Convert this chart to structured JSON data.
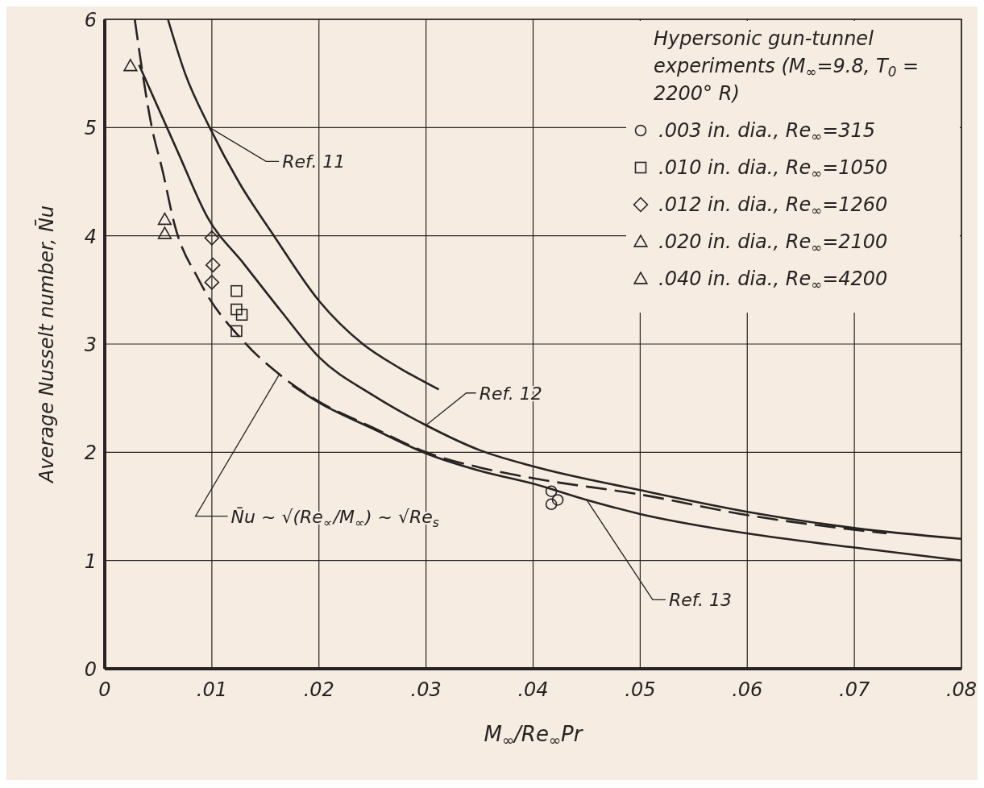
{
  "chart_data": {
    "type": "line",
    "xlabel": "M$_{∞}$/Re$_{∞}$Pr",
    "ylabel": "Average Nusselt number, N̄u",
    "legend_title": "Hypersonic gun-tunnel experiments (M$_{∞}$=9.8, T$_{0}$ = 2200° R)",
    "xlim": [
      0,
      0.08
    ],
    "xticks": [
      0,
      {
        "value": 0.01,
        "label": ".01"
      },
      {
        "value": 0.02,
        "label": ".02"
      },
      {
        "value": 0.03,
        "label": ".03"
      },
      {
        "value": 0.04,
        "label": ".04"
      },
      {
        "value": 0.05,
        "label": ".05"
      },
      {
        "value": 0.06,
        "label": ".06"
      },
      {
        "value": 0.07,
        "label": ".07"
      },
      {
        "value": 0.08,
        "label": ".08"
      }
    ],
    "ylim": [
      0,
      6
    ],
    "yticks": [
      0,
      1,
      2,
      3,
      4,
      5,
      6
    ],
    "grid": true,
    "legend": "top right",
    "series": [
      {
        "name": "Ref. 11",
        "line_style": "solid",
        "marker": "none",
        "color": "#262322",
        "x": [
          0.0059,
          0.0075,
          0.0098,
          0.0125,
          0.0158,
          0.02,
          0.0241,
          0.0275,
          0.0312
        ],
        "values": [
          6.0,
          5.5,
          5.0,
          4.5,
          4.0,
          3.4,
          3.0,
          2.78,
          2.58
        ]
      },
      {
        "name": "Ref. 12",
        "line_style": "solid",
        "marker": "none",
        "color": "#262322",
        "x": [
          0.0032,
          0.0068,
          0.0096,
          0.013,
          0.0165,
          0.02,
          0.025,
          0.03,
          0.035,
          0.04,
          0.05,
          0.06,
          0.07,
          0.08
        ],
        "values": [
          5.58,
          4.78,
          4.17,
          3.74,
          3.3,
          2.88,
          2.53,
          2.25,
          2.02,
          1.87,
          1.65,
          1.45,
          1.3,
          1.2
        ]
      },
      {
        "name": "Ref. 13",
        "line_style": "solid",
        "marker": "none",
        "color": "#262322",
        "x": [
          0.0175,
          0.02,
          0.025,
          0.03,
          0.035,
          0.04,
          0.045,
          0.05,
          0.06,
          0.07,
          0.08
        ],
        "values": [
          2.62,
          2.46,
          2.22,
          1.99,
          1.83,
          1.71,
          1.56,
          1.43,
          1.25,
          1.12,
          1.0
        ]
      },
      {
        "name": "N̄u ~ √(Re$_{∞}$/M$_{∞}$) ~ √Re$_{s}$",
        "line_style": "dashed",
        "marker": "none",
        "color": "#262322",
        "x": [
          0.0028,
          0.0044,
          0.0054,
          0.0065,
          0.0088,
          0.0131,
          0.0163,
          0.0198,
          0.025,
          0.03,
          0.035,
          0.04,
          0.05,
          0.06,
          0.073
        ],
        "values": [
          6.0,
          5.0,
          4.6,
          4.11,
          3.59,
          3.01,
          2.72,
          2.48,
          2.23,
          2.0,
          1.86,
          1.76,
          1.61,
          1.42,
          1.25
        ]
      },
      {
        "name": ".003 in. dia., Re$_{∞}$=315",
        "type": "scatter",
        "marker": "circle",
        "color": "#262322",
        "x": [
          0.0417,
          0.0423,
          0.0417
        ],
        "values": [
          1.64,
          1.56,
          1.52
        ]
      },
      {
        "name": ".010 in. dia., Re$_{∞}$=1050",
        "type": "scatter",
        "marker": "square",
        "color": "#262322",
        "x": [
          0.0123,
          0.0123,
          0.0128,
          0.0123
        ],
        "values": [
          3.49,
          3.32,
          3.27,
          3.12
        ]
      },
      {
        "name": ".012 in. dia., Re$_{∞}$=1260",
        "type": "scatter",
        "marker": "diamond",
        "color": "#262322",
        "x": [
          0.01,
          0.0101,
          0.01
        ],
        "values": [
          3.98,
          3.73,
          3.57
        ]
      },
      {
        "name": ".020 in. dia., Re$_{∞}$=2100",
        "type": "scatter",
        "marker": "triangle",
        "color": "#262322",
        "x": [
          0.0056,
          0.0056
        ],
        "values": [
          4.15,
          4.02
        ]
      },
      {
        "name": ".040 in. dia., Re$_{∞}$=4200",
        "type": "scatter",
        "marker": "triangle",
        "color": "#262322",
        "x": [
          0.0024
        ],
        "values": [
          5.57
        ]
      }
    ]
  }
}
